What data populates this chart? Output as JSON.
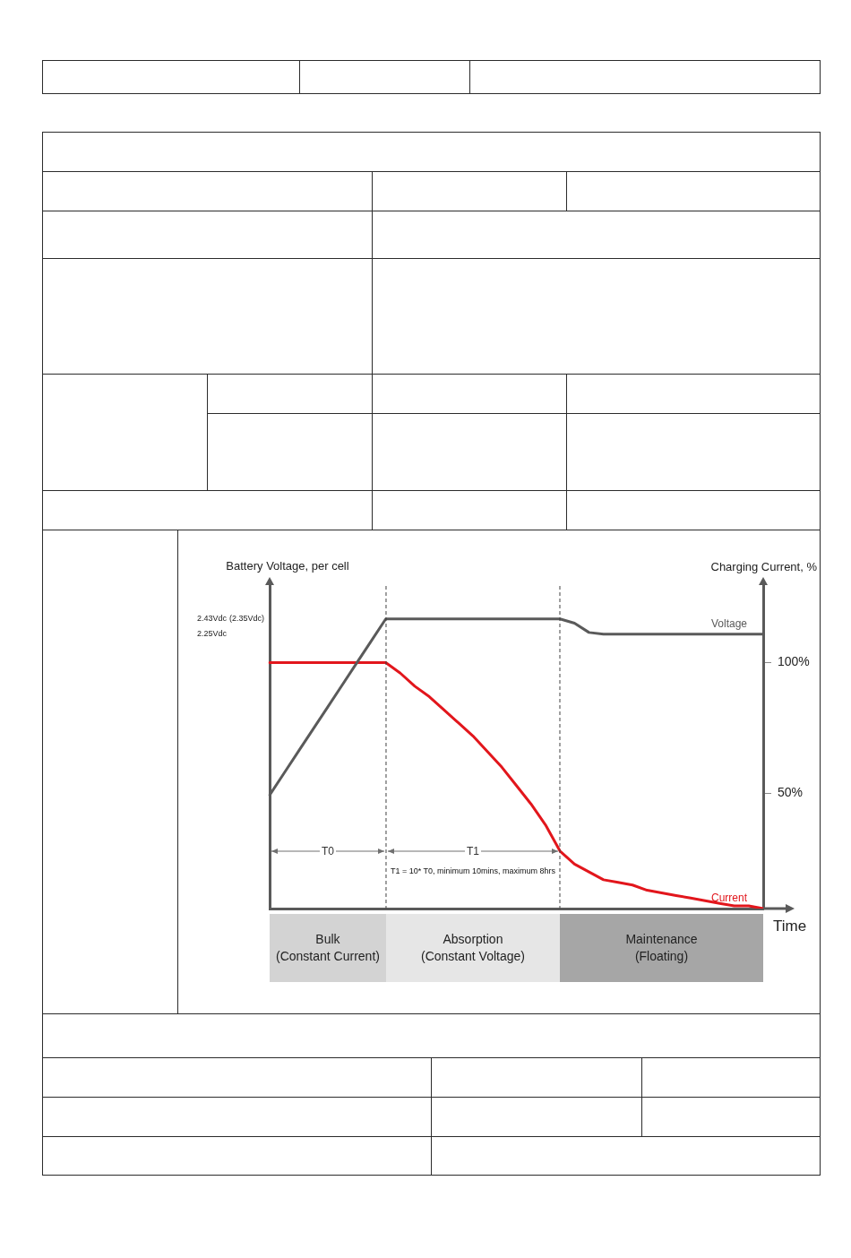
{
  "chart_data": {
    "type": "line",
    "xlabel": "Time",
    "ylabel": "Battery Voltage, per cell",
    "y2label": "Charging Current, %",
    "categories": [
      null,
      null,
      null,
      null,
      null,
      null,
      null,
      null,
      null,
      null,
      null,
      null,
      null,
      null,
      null,
      null,
      null,
      null,
      null,
      null,
      null,
      null,
      null,
      null,
      null,
      null,
      null,
      null,
      null,
      null,
      null,
      null,
      null,
      null,
      null
    ],
    "series": [
      {
        "name": "Voltage",
        "color": "#5a5a5a",
        "values": [
          0.35,
          0.61,
          0.87,
          1.13,
          1.39,
          1.65,
          1.91,
          2.17,
          2.43,
          2.43,
          2.43,
          2.43,
          2.43,
          2.43,
          2.43,
          2.43,
          2.43,
          2.43,
          2.43,
          2.43,
          2.43,
          2.38,
          2.27,
          2.25,
          2.25,
          2.25,
          2.25,
          2.25,
          2.25,
          2.25,
          2.25,
          2.25,
          2.25,
          2.25,
          2.25
        ]
      },
      {
        "name": "Current",
        "color": "#e2161c",
        "axis": "y2",
        "values": [
          100,
          100,
          100,
          100,
          100,
          100,
          100,
          100,
          100,
          96,
          91,
          87,
          82,
          77,
          72,
          66,
          60,
          53,
          46,
          38,
          28,
          23,
          20,
          17,
          16,
          15,
          13,
          12,
          11,
          10,
          9,
          8,
          7,
          7,
          6
        ]
      }
    ],
    "ylim": [
      -0.99,
      2.84
    ],
    "yticks": [
      {
        "value": 2.43,
        "label": "2.43Vdc"
      },
      {
        "value": 2.25,
        "label": "2.25Vdc"
      }
    ],
    "y2lim": [
      6,
      130
    ],
    "y2ticks": [
      {
        "value": 100,
        "label": "100%"
      },
      {
        "value": 50,
        "label": "50%"
      }
    ],
    "annotations": [
      "T0",
      "T1",
      "T1 = 10* T0, minimum 10mins, maximum 8hrs",
      "Bulk\n(Constant Current)",
      "Absorption\n(Constant Voltage)",
      "Maintenance\n(Floating)",
      "(2.35Vdc)"
    ],
    "grid": false,
    "legend": false,
    "marker": "none",
    "line_style": "solid"
  }
}
